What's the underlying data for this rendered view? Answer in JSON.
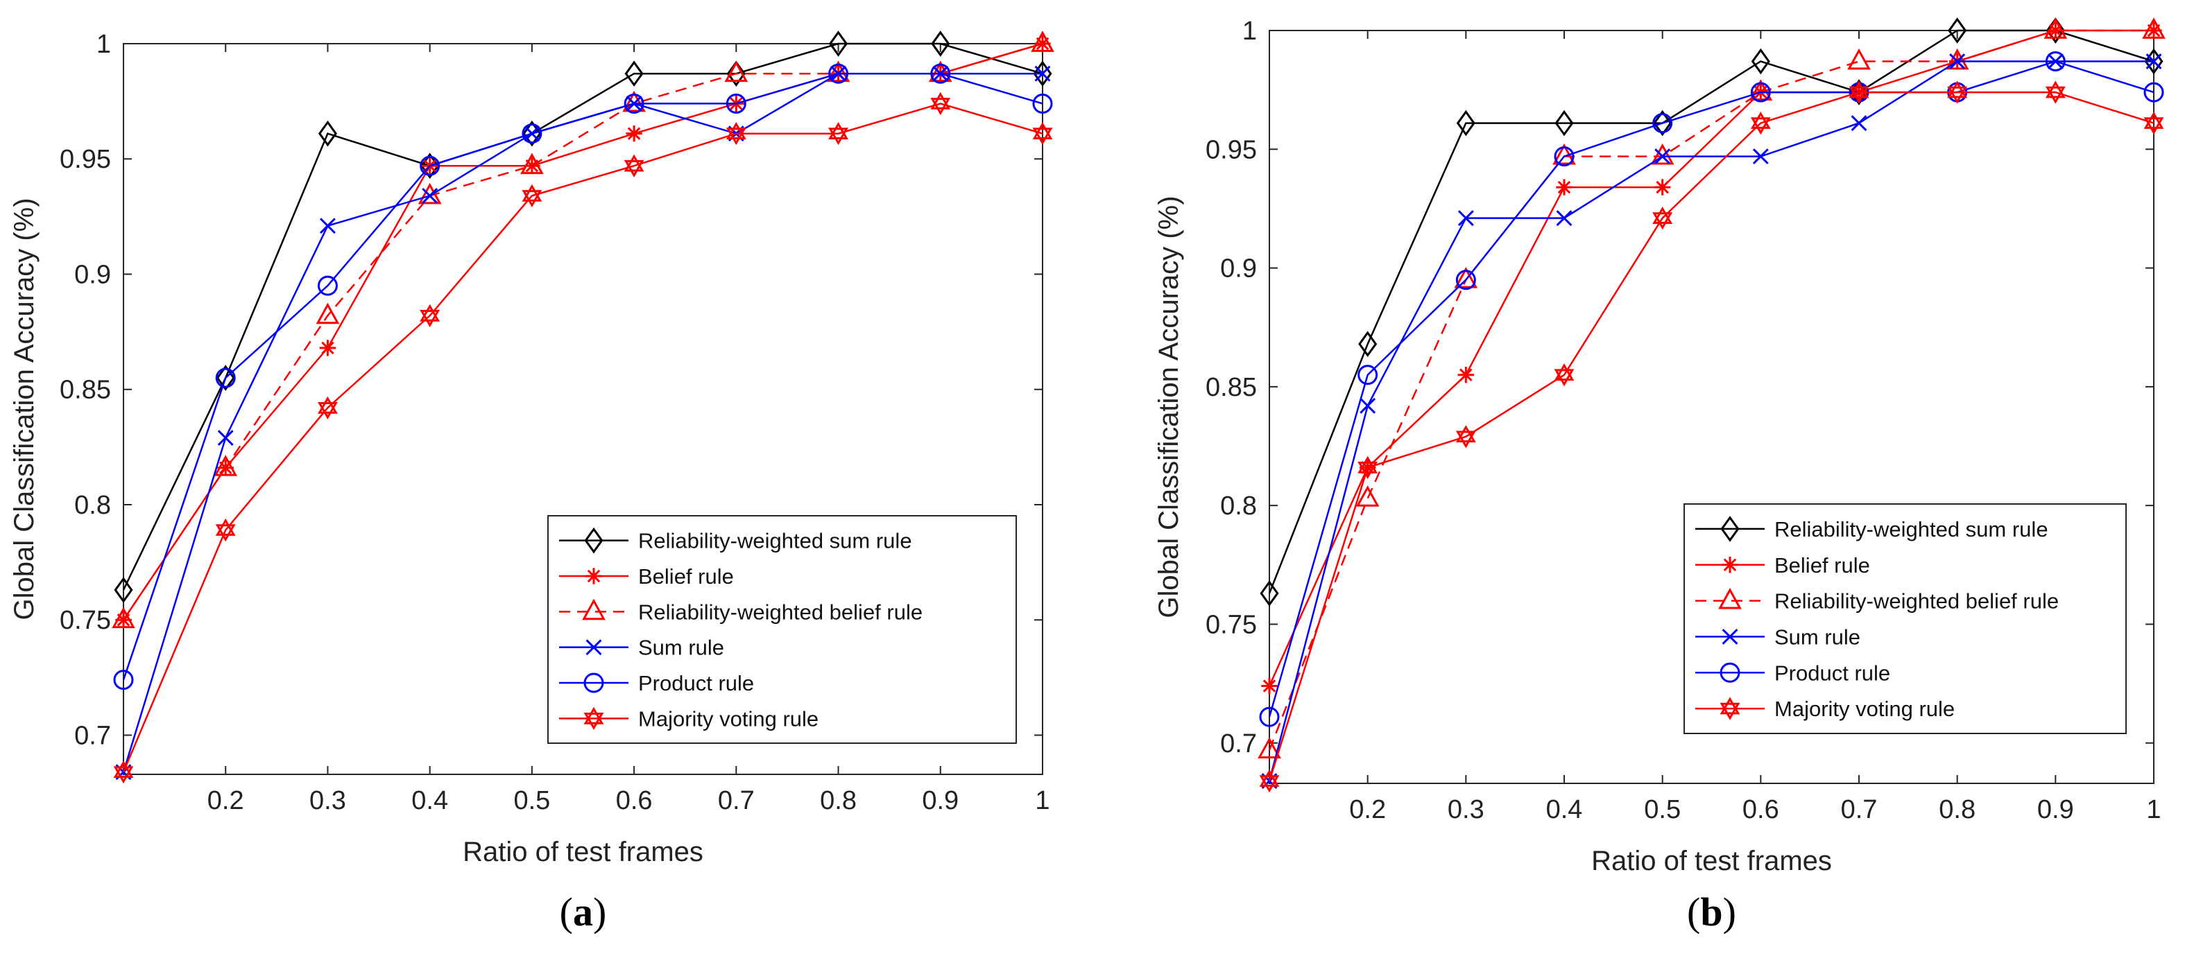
{
  "chart_data": [
    {
      "type": "line",
      "panel_label": "a",
      "xlabel": "Ratio of test frames",
      "ylabel": "Global Classification Accuracy (%)",
      "xlim": [
        0.1,
        1.0
      ],
      "ylim": [
        0.683,
        1.0
      ],
      "x": [
        0.1,
        0.2,
        0.3,
        0.4,
        0.5,
        0.6,
        0.7,
        0.8,
        0.9,
        1.0
      ],
      "xticks": [
        "0.2",
        "0.3",
        "0.4",
        "0.5",
        "0.6",
        "0.7",
        "0.8",
        "0.9",
        "1"
      ],
      "yticks": [
        "0.7",
        "0.75",
        "0.8",
        "0.85",
        "0.9",
        "0.95",
        "1"
      ],
      "legend_position": "bottom-right",
      "series": [
        {
          "name": "Reliability-weighted sum rule",
          "color": "#000000",
          "marker": "diamond",
          "dash": "solid",
          "values": [
            0.763,
            0.855,
            0.961,
            0.947,
            0.961,
            0.987,
            0.987,
            1.0,
            1.0,
            0.987
          ]
        },
        {
          "name": "Belief rule",
          "color": "#ff0000",
          "marker": "asterisk",
          "dash": "solid",
          "values": [
            0.75,
            0.816,
            0.868,
            0.947,
            0.947,
            0.961,
            0.974,
            0.987,
            0.987,
            1.0
          ]
        },
        {
          "name": "Reliability-weighted belief rule",
          "color": "#ff0000",
          "marker": "triangle",
          "dash": "dashed",
          "values": [
            0.75,
            0.816,
            0.882,
            0.934,
            0.947,
            0.974,
            0.987,
            0.987,
            0.987,
            1.0
          ]
        },
        {
          "name": "Sum rule",
          "color": "#0000ff",
          "marker": "x",
          "dash": "solid",
          "values": [
            0.684,
            0.829,
            0.921,
            0.934,
            0.961,
            0.974,
            0.961,
            0.987,
            0.987,
            0.987
          ]
        },
        {
          "name": "Product rule",
          "color": "#0000ff",
          "marker": "circle",
          "dash": "solid",
          "values": [
            0.724,
            0.855,
            0.895,
            0.947,
            0.961,
            0.974,
            0.974,
            0.987,
            0.987,
            0.974
          ]
        },
        {
          "name": "Majority voting rule",
          "color": "#ff0000",
          "marker": "star",
          "dash": "solid",
          "values": [
            0.684,
            0.789,
            0.842,
            0.882,
            0.934,
            0.947,
            0.961,
            0.961,
            0.974,
            0.961
          ]
        }
      ]
    },
    {
      "type": "line",
      "panel_label": "b",
      "xlabel": "Ratio of test frames",
      "ylabel": "Global Classification Accuracy (%)",
      "xlim": [
        0.1,
        1.0
      ],
      "ylim": [
        0.683,
        1.0
      ],
      "x": [
        0.1,
        0.2,
        0.3,
        0.4,
        0.5,
        0.6,
        0.7,
        0.8,
        0.9,
        1.0
      ],
      "xticks": [
        "0.2",
        "0.3",
        "0.4",
        "0.5",
        "0.6",
        "0.7",
        "0.8",
        "0.9",
        "1"
      ],
      "yticks": [
        "0.7",
        "0.75",
        "0.8",
        "0.85",
        "0.9",
        "0.95",
        "1"
      ],
      "legend_position": "bottom-right",
      "series": [
        {
          "name": "Reliability-weighted sum rule",
          "color": "#000000",
          "marker": "diamond",
          "dash": "solid",
          "values": [
            0.763,
            0.868,
            0.961,
            0.961,
            0.961,
            0.987,
            0.974,
            1.0,
            1.0,
            0.987
          ]
        },
        {
          "name": "Belief rule",
          "color": "#ff0000",
          "marker": "asterisk",
          "dash": "solid",
          "values": [
            0.724,
            0.816,
            0.855,
            0.934,
            0.934,
            0.974,
            0.974,
            0.987,
            1.0,
            1.0
          ]
        },
        {
          "name": "Reliability-weighted belief rule",
          "color": "#ff0000",
          "marker": "triangle",
          "dash": "dashed",
          "values": [
            0.697,
            0.803,
            0.895,
            0.947,
            0.947,
            0.974,
            0.987,
            0.987,
            1.0,
            1.0
          ]
        },
        {
          "name": "Sum rule",
          "color": "#0000ff",
          "marker": "x",
          "dash": "solid",
          "values": [
            0.684,
            0.842,
            0.921,
            0.921,
            0.947,
            0.947,
            0.961,
            0.987,
            0.987,
            0.987
          ]
        },
        {
          "name": "Product rule",
          "color": "#0000ff",
          "marker": "circle",
          "dash": "solid",
          "values": [
            0.711,
            0.855,
            0.895,
            0.947,
            0.961,
            0.974,
            0.974,
            0.974,
            0.987,
            0.974
          ]
        },
        {
          "name": "Majority voting rule",
          "color": "#ff0000",
          "marker": "star",
          "dash": "solid",
          "values": [
            0.684,
            0.816,
            0.829,
            0.855,
            0.921,
            0.961,
            0.974,
            0.974,
            0.974,
            0.961
          ]
        }
      ]
    }
  ]
}
